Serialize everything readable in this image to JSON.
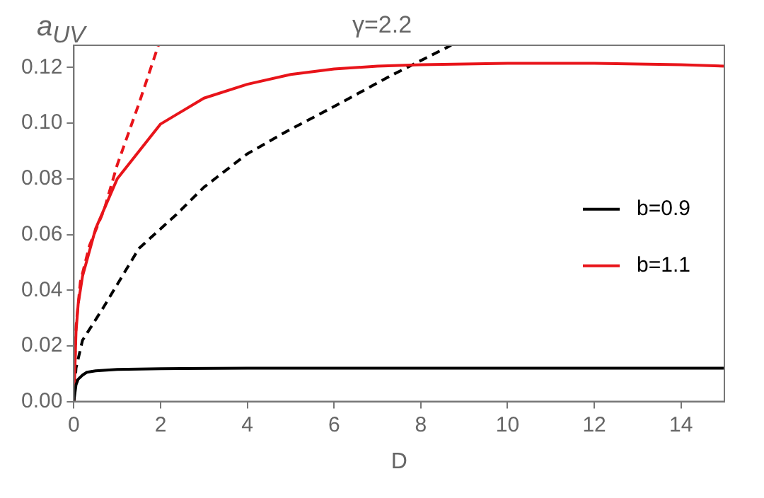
{
  "chart_data": {
    "type": "line",
    "title": "γ=2.2",
    "xlabel": "D",
    "ylabel": "a$_{UV}$",
    "xlim": [
      0,
      15
    ],
    "xticks": [
      0,
      2,
      4,
      6,
      8,
      10,
      12,
      14
    ],
    "ylim": [
      0,
      0.128
    ],
    "yticks": [
      {
        "value": 0,
        "label": "0.00"
      },
      {
        "value": 0.02,
        "label": "0.02"
      },
      {
        "value": 0.04,
        "label": "0.04"
      },
      {
        "value": 0.06,
        "label": "0.06"
      },
      {
        "value": 0.08,
        "label": "0.08"
      },
      {
        "value": 0.1,
        "label": "0.10"
      },
      {
        "value": 0.12,
        "label": "0.12"
      }
    ],
    "grid": false,
    "legend": "right",
    "marker": "none",
    "series": [
      {
        "name": "b=0.9",
        "color": "#000000",
        "line_style": "solid",
        "x": [
          0,
          0.05,
          0.1,
          0.2,
          0.3,
          0.5,
          1,
          2,
          4,
          8,
          15
        ],
        "values": [
          0,
          0.006,
          0.008,
          0.0095,
          0.0105,
          0.011,
          0.0115,
          0.0118,
          0.012,
          0.012,
          0.012
        ]
      },
      {
        "name": "b=1.1",
        "color": "#e8141a",
        "line_style": "solid",
        "x": [
          0,
          0.05,
          0.1,
          0.2,
          0.5,
          1,
          2,
          3,
          4,
          5,
          6,
          7,
          8,
          10,
          12,
          14,
          15
        ],
        "values": [
          0,
          0.025,
          0.035,
          0.045,
          0.062,
          0.08,
          0.0997,
          0.109,
          0.114,
          0.1175,
          0.1195,
          0.1205,
          0.121,
          0.1215,
          0.1215,
          0.121,
          0.1205
        ]
      },
      {
        "color": "#000000",
        "line_style": "dashed",
        "x": [
          0,
          0.05,
          0.2,
          0.69,
          1.5,
          2.35,
          3,
          4,
          4.9,
          6,
          7.3,
          8.7
        ],
        "values": [
          0,
          0.012,
          0.022,
          0.034,
          0.055,
          0.067,
          0.077,
          0.089,
          0.097,
          0.106,
          0.117,
          0.128
        ]
      },
      {
        "color": "#e8141a",
        "line_style": "dashed",
        "x": [
          0,
          0.05,
          0.15,
          0.36,
          0.7,
          1,
          1.5,
          1.95
        ],
        "values": [
          0,
          0.027,
          0.043,
          0.056,
          0.069,
          0.085,
          0.107,
          0.128
        ]
      }
    ]
  }
}
